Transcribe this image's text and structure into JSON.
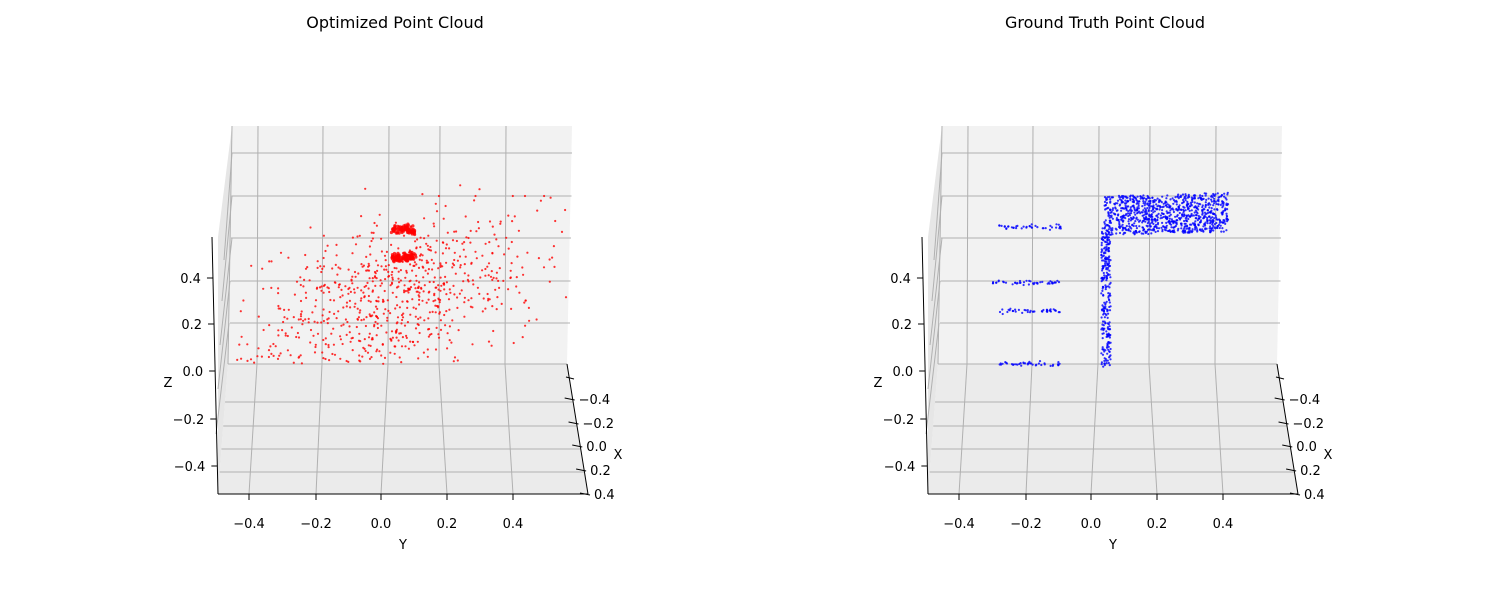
{
  "figure": {
    "background": "#ffffff"
  },
  "chart_data": [
    {
      "type": "scatter",
      "title": "Optimized Point Cloud",
      "xlabel": "X",
      "ylabel": "Y",
      "zlabel": "Z",
      "color": "#ff0000",
      "xticks": [
        {
          "v": -0.4,
          "t": "−0.4"
        },
        {
          "v": -0.2,
          "t": "−0.2"
        },
        {
          "v": 0.0,
          "t": "0.0"
        },
        {
          "v": 0.2,
          "t": "0.2"
        },
        {
          "v": 0.4,
          "t": "0.4"
        }
      ],
      "yticks": [
        {
          "v": -0.4,
          "t": "−0.4"
        },
        {
          "v": -0.2,
          "t": "−0.2"
        },
        {
          "v": 0.0,
          "t": "0.0"
        },
        {
          "v": 0.2,
          "t": "0.2"
        },
        {
          "v": 0.4,
          "t": "0.4"
        }
      ],
      "zticks": [
        {
          "v": -0.4,
          "t": "−0.4"
        },
        {
          "v": -0.2,
          "t": "−0.2"
        },
        {
          "v": 0.0,
          "t": "0.0"
        },
        {
          "v": 0.2,
          "t": "0.2"
        },
        {
          "v": 0.4,
          "t": "0.4"
        }
      ],
      "xlim": [
        -0.5,
        0.5
      ],
      "ylim": [
        -0.5,
        0.6
      ],
      "zlim": [
        -0.5,
        0.6
      ],
      "grid": true,
      "distribution": {
        "kind": "blob-with-clusters",
        "count": 760,
        "center_y": 0.05,
        "center_z": 0.25,
        "spread_y": 0.22,
        "spread_z": 0.13,
        "clusters": [
          {
            "y": 0.07,
            "z": 0.48,
            "half_width_y": 0.04,
            "count": 80
          },
          {
            "y": 0.07,
            "z": 0.38,
            "half_width_y": 0.04,
            "count": 90
          }
        ]
      }
    },
    {
      "type": "scatter",
      "title": "Ground Truth Point Cloud",
      "xlabel": "X",
      "ylabel": "Y",
      "zlabel": "Z",
      "color": "#0000ff",
      "xticks": [
        {
          "v": -0.4,
          "t": "−0.4"
        },
        {
          "v": -0.2,
          "t": "−0.2"
        },
        {
          "v": 0.0,
          "t": "0.0"
        },
        {
          "v": 0.2,
          "t": "0.2"
        },
        {
          "v": 0.4,
          "t": "0.4"
        }
      ],
      "yticks": [
        {
          "v": -0.4,
          "t": "−0.4"
        },
        {
          "v": -0.2,
          "t": "−0.2"
        },
        {
          "v": 0.0,
          "t": "0.0"
        },
        {
          "v": 0.2,
          "t": "0.2"
        },
        {
          "v": 0.4,
          "t": "0.4"
        }
      ],
      "zticks": [
        {
          "v": -0.4,
          "t": "−0.4"
        },
        {
          "v": -0.2,
          "t": "−0.2"
        },
        {
          "v": 0.0,
          "t": "0.0"
        },
        {
          "v": 0.2,
          "t": "0.2"
        },
        {
          "v": 0.4,
          "t": "0.4"
        }
      ],
      "xlim": [
        -0.5,
        0.5
      ],
      "ylim": [
        -0.5,
        0.6
      ],
      "zlim": [
        -0.5,
        0.6
      ],
      "grid": true,
      "distribution": {
        "kind": "chair",
        "seat_block": {
          "y": [
            0.04,
            0.44
          ],
          "z": [
            0.46,
            0.6
          ],
          "count": 900
        },
        "post": {
          "y": [
            0.03,
            0.06
          ],
          "z": [
            -0.01,
            0.49
          ],
          "count": 260
        },
        "rows": [
          {
            "y": [
              -0.3,
              -0.1
            ],
            "z": 0.49,
            "count": 40
          },
          {
            "y": [
              -0.32,
              -0.1
            ],
            "z": 0.29,
            "count": 45
          },
          {
            "y": [
              -0.3,
              -0.1
            ],
            "z": 0.19,
            "count": 40
          },
          {
            "y": [
              -0.3,
              -0.1
            ],
            "z": 0.0,
            "count": 40
          }
        ]
      }
    }
  ]
}
